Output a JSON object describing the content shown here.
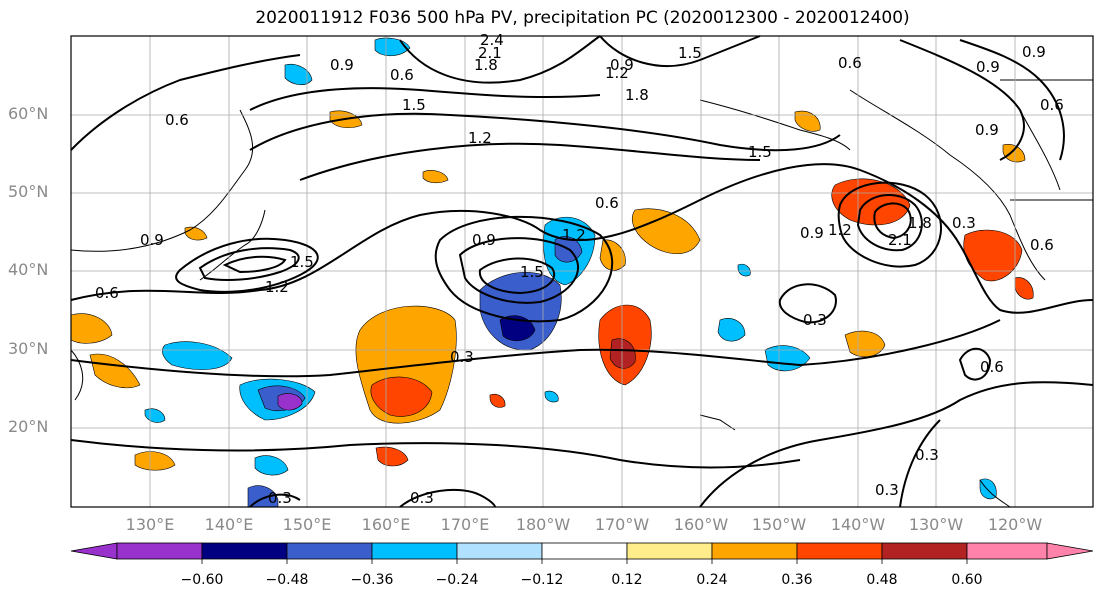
{
  "title": "2020011912 F036 500 hPa PV, precipitation PC (2020012300 - 2020012400)",
  "lat_labels": [
    "60°N",
    "50°N",
    "40°N",
    "30°N",
    "20°N"
  ],
  "lon_labels": [
    "130°E",
    "140°E",
    "150°E",
    "160°E",
    "170°E",
    "180°W",
    "170°W",
    "160°W",
    "150°W",
    "140°W",
    "130°W",
    "120°W"
  ],
  "colorbar": {
    "ticks": [
      "−0.60",
      "−0.48",
      "−0.36",
      "−0.24",
      "−0.12",
      "0.12",
      "0.24",
      "0.36",
      "0.48",
      "0.60"
    ],
    "colors": [
      "#9932CC",
      "#000080",
      "#3A5FCD",
      "#00BFFF",
      "#B0E2FF",
      "#FFFFFF",
      "#FFEC8B",
      "#FFA500",
      "#FF4500",
      "#B22222",
      "#FF82AB"
    ]
  },
  "contour_labels": [
    "0.9",
    "0.6",
    "2.4",
    "2.1",
    "1.8",
    "0.9",
    "1.2",
    "1.5",
    "0.6",
    "0.9",
    "0.6",
    "1.5",
    "1.2",
    "1.8",
    "1.5",
    "0.9",
    "0.6",
    "0.9",
    "1.2",
    "1.5",
    "0.6",
    "1.2",
    "1.5",
    "0.9",
    "1.2",
    "2.1",
    "1.8",
    "0.3",
    "0.6",
    "0.3",
    "0.3",
    "0.6",
    "0.3",
    "0.3",
    "0.3",
    "0.3",
    "0.9",
    "0.9",
    "0.6"
  ]
}
